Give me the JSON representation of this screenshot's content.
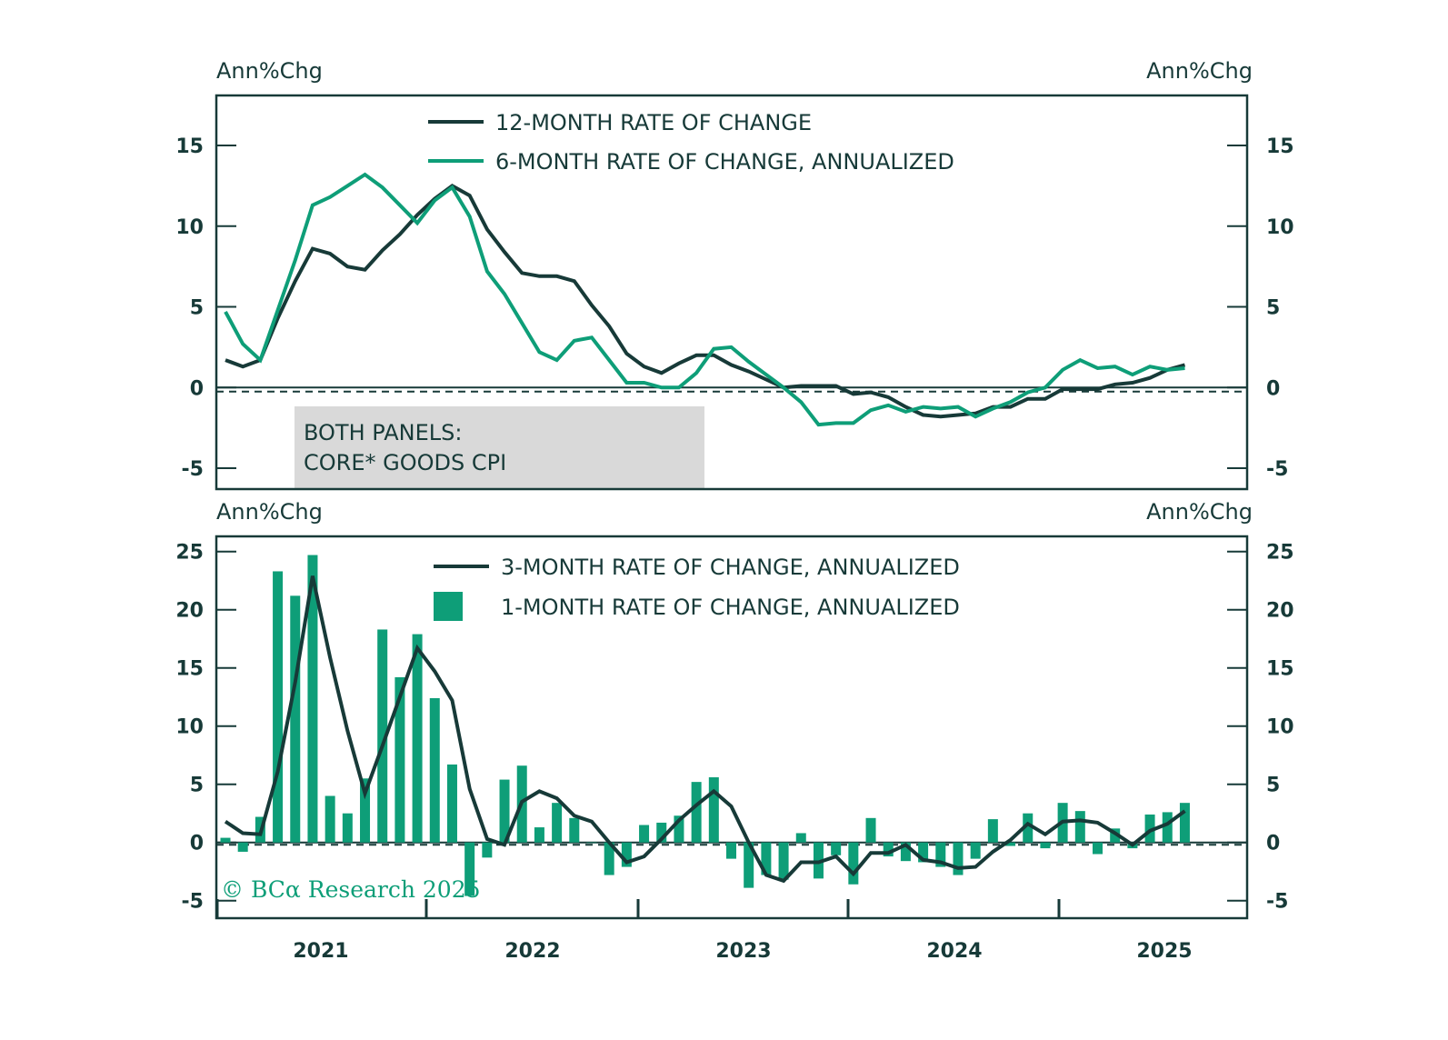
{
  "chart_data": [
    {
      "type": "line",
      "panel": "top",
      "ylabel_left": "Ann%Chg",
      "ylabel_right": "Ann%Chg",
      "ylim": [
        -6.3,
        18.1
      ],
      "y_ticks": [
        -5,
        0,
        5,
        10,
        15
      ],
      "y_tick_labels": [
        "-5",
        "0",
        "5",
        "10",
        "15"
      ],
      "reference_line": -0.25,
      "legend_position": "top-center",
      "annotation": [
        "BOTH PANELS:",
        "CORE* GOODS CPI"
      ],
      "x": [
        "2021-01",
        "2021-02",
        "2021-03",
        "2021-04",
        "2021-05",
        "2021-06",
        "2021-07",
        "2021-08",
        "2021-09",
        "2021-10",
        "2021-11",
        "2021-12",
        "2022-01",
        "2022-02",
        "2022-03",
        "2022-04",
        "2022-05",
        "2022-06",
        "2022-07",
        "2022-08",
        "2022-09",
        "2022-10",
        "2022-11",
        "2022-12",
        "2023-01",
        "2023-02",
        "2023-03",
        "2023-04",
        "2023-05",
        "2023-06",
        "2023-07",
        "2023-08",
        "2023-09",
        "2023-10",
        "2023-11",
        "2023-12",
        "2024-01",
        "2024-02",
        "2024-03",
        "2024-04",
        "2024-05",
        "2024-06",
        "2024-07",
        "2024-08",
        "2024-09",
        "2024-10",
        "2024-11",
        "2024-12",
        "2025-01",
        "2025-02",
        "2025-03",
        "2025-04",
        "2025-05",
        "2025-06",
        "2025-07",
        "2025-08"
      ],
      "series": [
        {
          "name": "12-MONTH RATE OF CHANGE",
          "color": "#173a38",
          "values": [
            1.7,
            1.3,
            1.7,
            4.3,
            6.6,
            8.6,
            8.3,
            7.5,
            7.3,
            8.5,
            9.5,
            10.7,
            11.7,
            12.5,
            11.9,
            9.8,
            8.4,
            7.1,
            6.9,
            6.9,
            6.6,
            5.1,
            3.8,
            2.1,
            1.3,
            0.9,
            1.5,
            2.0,
            2.0,
            1.4,
            1.0,
            0.5,
            0.0,
            0.1,
            0.1,
            0.1,
            -0.4,
            -0.3,
            -0.6,
            -1.2,
            -1.7,
            -1.8,
            -1.7,
            -1.6,
            -1.2,
            -1.2,
            -0.7,
            -0.7,
            -0.1,
            -0.1,
            -0.1,
            0.2,
            0.3,
            0.6,
            1.1,
            1.4
          ]
        },
        {
          "name": "6-MONTH RATE OF CHANGE, ANNUALIZED",
          "color": "#0e9e78",
          "values": [
            4.7,
            2.7,
            1.7,
            4.8,
            7.9,
            11.3,
            11.8,
            12.5,
            13.2,
            12.4,
            11.3,
            10.2,
            11.6,
            12.4,
            10.6,
            7.2,
            5.8,
            4.0,
            2.2,
            1.7,
            2.9,
            3.1,
            1.7,
            0.3,
            0.3,
            0.0,
            0.0,
            0.9,
            2.4,
            2.5,
            1.6,
            0.8,
            0.0,
            -0.9,
            -2.3,
            -2.2,
            -2.2,
            -1.4,
            -1.1,
            -1.5,
            -1.2,
            -1.3,
            -1.2,
            -1.8,
            -1.3,
            -0.9,
            -0.3,
            0.0,
            1.1,
            1.7,
            1.2,
            1.3,
            0.8,
            1.3,
            1.1,
            1.2
          ]
        }
      ]
    },
    {
      "type": "bar+line",
      "panel": "bottom",
      "ylabel_left": "Ann%Chg",
      "ylabel_right": "Ann%Chg",
      "ylim": [
        -6.5,
        26.3
      ],
      "y_ticks": [
        -5,
        0,
        5,
        10,
        15,
        20,
        25
      ],
      "y_tick_labels": [
        "-5",
        "0",
        "5",
        "10",
        "15",
        "20",
        "25"
      ],
      "reference_line": -0.2,
      "legend_position": "top-center",
      "x_tick_labels": [
        "2021",
        "2022",
        "2023",
        "2024",
        "2025"
      ],
      "series": [
        {
          "name": "3-MONTH RATE OF CHANGE, ANNUALIZED",
          "kind": "line",
          "color": "#173a38",
          "values": [
            1.8,
            0.8,
            0.7,
            6.1,
            13.8,
            22.9,
            15.9,
            9.6,
            4.2,
            8.3,
            12.5,
            16.7,
            14.7,
            12.2,
            4.6,
            0.3,
            -0.2,
            3.5,
            4.4,
            3.8,
            2.3,
            1.8,
            0.0,
            -1.7,
            -1.2,
            0.3,
            1.9,
            3.2,
            4.4,
            3.1,
            0.0,
            -2.8,
            -3.3,
            -1.7,
            -1.7,
            -1.2,
            -2.7,
            -0.9,
            -0.9,
            -0.2,
            -1.5,
            -1.7,
            -2.2,
            -2.1,
            -0.8,
            0.2,
            1.6,
            0.7,
            1.8,
            1.9,
            1.7,
            0.8,
            -0.2,
            1.0,
            1.6,
            2.7
          ]
        },
        {
          "name": "1-MONTH RATE OF CHANGE, ANNUALIZED",
          "kind": "bar",
          "color": "#0e9e78",
          "values": [
            0.4,
            -0.8,
            2.2,
            23.3,
            21.2,
            24.7,
            4.0,
            2.5,
            5.5,
            18.3,
            14.2,
            17.9,
            12.4,
            6.7,
            -4.6,
            -1.3,
            5.4,
            6.6,
            1.3,
            3.4,
            2.1,
            0.0,
            -2.8,
            -2.1,
            1.5,
            1.7,
            2.3,
            5.2,
            5.6,
            -1.4,
            -3.9,
            -2.8,
            -3.2,
            0.8,
            -3.1,
            -1.1,
            -3.6,
            2.1,
            -1.2,
            -1.6,
            -1.7,
            -2.1,
            -2.8,
            -1.4,
            2.0,
            -0.3,
            2.5,
            -0.5,
            3.4,
            2.7,
            -1.0,
            1.2,
            -0.5,
            2.4,
            2.6,
            3.4
          ]
        }
      ]
    }
  ],
  "watermark": "© BCα Research 2025",
  "colors": {
    "dark": "#173a38",
    "green": "#0e9e78",
    "annotation_bg": "#d9d9d9"
  }
}
